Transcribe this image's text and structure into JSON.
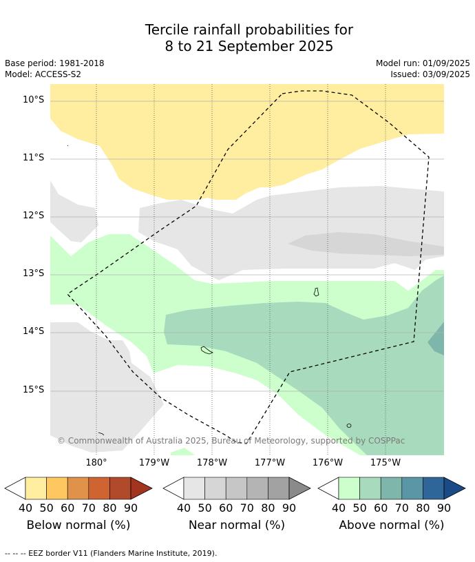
{
  "title": {
    "line1": "Tercile rainfall probabilities for",
    "line2": "8 to 21 September 2025"
  },
  "meta": {
    "base_period": "Base period: 1981-2018",
    "model": "Model: ACCESS-S2",
    "model_run": "Model run: 01/09/2025",
    "issued": "Issued: 03/09/2025"
  },
  "map": {
    "lat_labels": [
      "10°S",
      "11°S",
      "12°S",
      "13°S",
      "14°S",
      "15°S"
    ],
    "lon_labels": [
      "180°",
      "179°W",
      "178°W",
      "177°W",
      "176°W",
      "175°W"
    ],
    "copyright": "© Commonwealth of Australia 2025, Bureau of Meteorology, supported by COSPPac"
  },
  "colorbars": [
    {
      "title": "Below normal (%)",
      "ticks": [
        "40",
        "50",
        "60",
        "70",
        "80",
        "90"
      ],
      "colors": [
        "#ffffff",
        "#ffeda0",
        "#fec760",
        "#e0924a",
        "#cf6433",
        "#b04a2a",
        "#a23420"
      ]
    },
    {
      "title": "Near normal (%)",
      "ticks": [
        "40",
        "50",
        "60",
        "70",
        "80",
        "90"
      ],
      "colors": [
        "#ffffff",
        "#e6e6e6",
        "#d6d6d6",
        "#c6c6c6",
        "#b4b4b4",
        "#a2a2a2",
        "#8a8a8a"
      ]
    },
    {
      "title": "Above normal (%)",
      "ticks": [
        "40",
        "50",
        "60",
        "70",
        "80",
        "90"
      ],
      "colors": [
        "#ffffff",
        "#ccffcc",
        "#a8dbbd",
        "#7fb6ab",
        "#5a96a6",
        "#2f6699",
        "#1a4b86"
      ]
    }
  ],
  "footer": "-- -- -- EEZ border V11 (Flanders Marine Institute, 2019)."
}
